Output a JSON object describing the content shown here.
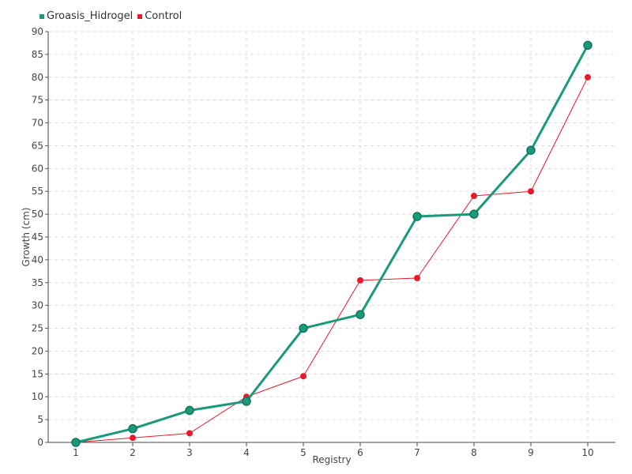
{
  "chart_data": {
    "type": "line",
    "title": "",
    "xlabel": "Registry",
    "ylabel": "Growth (cm)",
    "categories": [
      "1",
      "2",
      "3",
      "4",
      "5",
      "6",
      "7",
      "8",
      "9",
      "10"
    ],
    "ylim": [
      0,
      90
    ],
    "ytick_step": 5,
    "grid": true,
    "legend_position": "top-left",
    "series": [
      {
        "name": "Groasis_Hidrogel",
        "color": "#1a9a7a",
        "values": [
          0,
          3,
          7,
          9,
          25,
          28,
          49.5,
          50,
          64,
          87
        ]
      },
      {
        "name": "Control",
        "color": "#e8192c",
        "values": [
          0,
          1,
          2,
          10,
          14.5,
          35.5,
          36,
          54,
          55,
          80
        ]
      }
    ]
  }
}
